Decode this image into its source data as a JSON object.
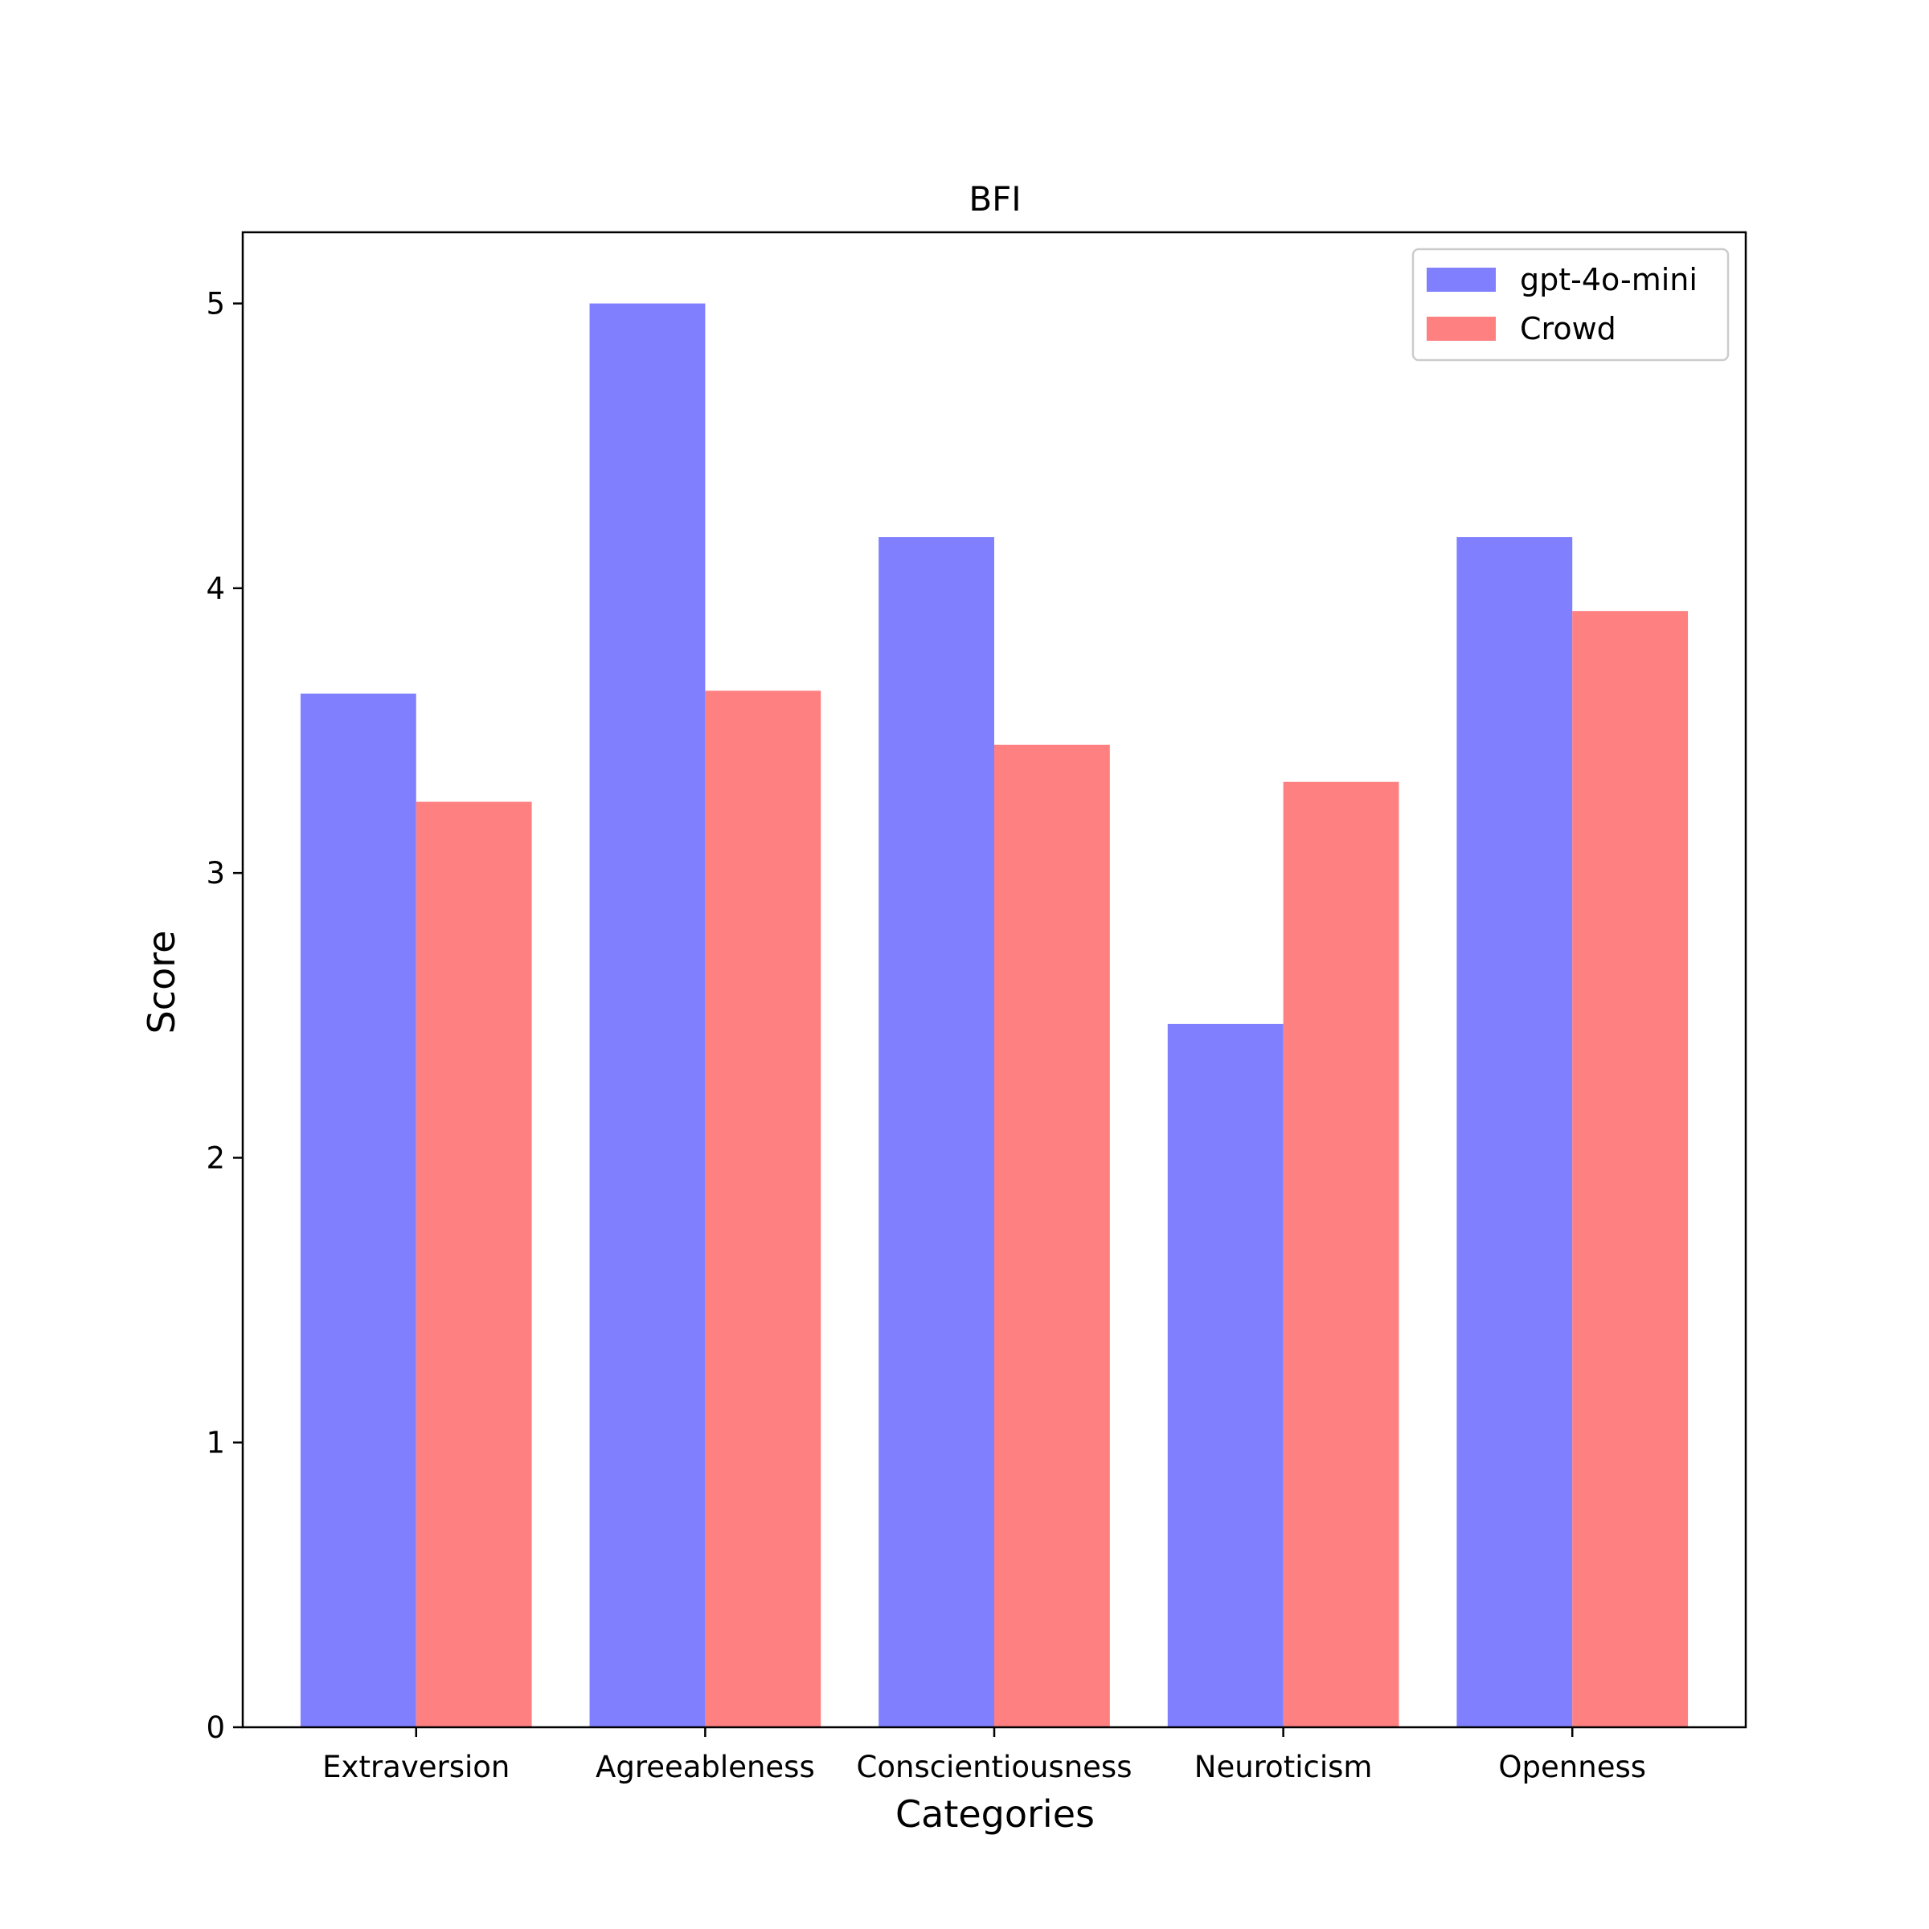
{
  "chart_data": {
    "type": "bar",
    "title": "BFI",
    "xlabel": "Categories",
    "ylabel": "Score",
    "categories": [
      "Extraversion",
      "Agreeableness",
      "Conscientiousness",
      "Neuroticism",
      "Openness"
    ],
    "series": [
      {
        "name": "gpt-4o-mini",
        "color": "#8080ff",
        "values": [
          3.63,
          5.0,
          4.18,
          2.47,
          4.18
        ]
      },
      {
        "name": "Crowd",
        "color": "#ff8080",
        "values": [
          3.25,
          3.64,
          3.45,
          3.32,
          3.92
        ]
      }
    ],
    "ylim": [
      0,
      5.25
    ],
    "yticks": [
      "0",
      "1",
      "2",
      "3",
      "4",
      "5"
    ],
    "grid": false,
    "legend": "top-right"
  }
}
